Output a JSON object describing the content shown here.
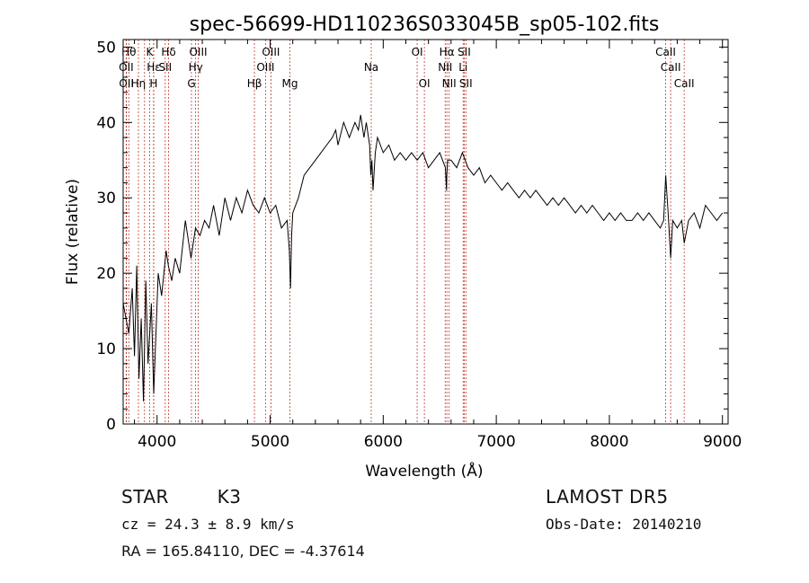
{
  "chart_data": {
    "type": "line",
    "title": "spec-56699-HD110236S033045B_sp05-102.fits",
    "xlabel": "Wavelength (Å)",
    "ylabel": "Flux (relative)",
    "xlim": [
      3700,
      9050
    ],
    "ylim": [
      0,
      51
    ],
    "xticks": [
      4000,
      5000,
      6000,
      7000,
      8000,
      9000
    ],
    "yticks": [
      0,
      10,
      20,
      30,
      40,
      50
    ],
    "grid": false,
    "series": [
      {
        "x": [
          3700,
          3750,
          3780,
          3800,
          3820,
          3840,
          3860,
          3880,
          3900,
          3920,
          3950,
          3970,
          3990,
          4010,
          4040,
          4080,
          4100,
          4130,
          4160,
          4200,
          4250,
          4300,
          4340,
          4380,
          4420,
          4460,
          4500,
          4550,
          4600,
          4650,
          4700,
          4750,
          4800,
          4850,
          4900,
          4950,
          5000,
          5050,
          5100,
          5150,
          5170,
          5180,
          5190,
          5200,
          5250,
          5300,
          5350,
          5400,
          5450,
          5500,
          5550,
          5580,
          5600,
          5650,
          5700,
          5750,
          5780,
          5800,
          5830,
          5850,
          5880,
          5890,
          5900,
          5910,
          5930,
          5950,
          6000,
          6050,
          6100,
          6150,
          6200,
          6250,
          6300,
          6350,
          6400,
          6450,
          6500,
          6550,
          6560,
          6563,
          6570,
          6600,
          6650,
          6700,
          6750,
          6800,
          6850,
          6900,
          6950,
          7000,
          7050,
          7100,
          7150,
          7200,
          7250,
          7300,
          7350,
          7400,
          7450,
          7500,
          7550,
          7600,
          7650,
          7700,
          7750,
          7800,
          7850,
          7900,
          7950,
          8000,
          8050,
          8100,
          8150,
          8200,
          8250,
          8300,
          8350,
          8400,
          8450,
          8480,
          8498,
          8520,
          8542,
          8560,
          8600,
          8640,
          8662,
          8700,
          8750,
          8800,
          8850,
          8900,
          8950,
          9000
        ],
        "y": [
          16,
          12,
          18,
          9,
          21,
          6,
          14,
          3,
          19,
          8,
          16,
          4,
          12,
          20,
          17,
          23,
          21,
          19,
          22,
          20,
          27,
          22,
          26,
          25,
          27,
          26,
          29,
          25,
          30,
          27,
          30,
          28,
          31,
          29,
          28,
          30,
          28,
          29,
          26,
          27,
          23,
          18,
          25,
          28,
          30,
          33,
          34,
          35,
          36,
          37,
          38,
          39,
          37,
          40,
          38,
          40,
          39,
          41,
          38,
          40,
          37,
          33,
          35,
          31,
          36,
          38,
          36,
          37,
          35,
          36,
          35,
          36,
          35,
          36,
          34,
          35,
          36,
          34,
          31,
          33,
          35,
          35,
          34,
          36,
          34,
          33,
          34,
          32,
          33,
          32,
          31,
          32,
          31,
          30,
          31,
          30,
          31,
          30,
          29,
          30,
          29,
          30,
          29,
          28,
          29,
          28,
          29,
          28,
          27,
          28,
          27,
          28,
          27,
          27,
          28,
          27,
          28,
          27,
          26,
          27,
          33,
          28,
          22,
          27,
          26,
          27,
          24,
          27,
          28,
          26,
          29,
          28,
          27,
          28
        ]
      }
    ],
    "lines": [
      {
        "wl": 3750,
        "label": "Hθ",
        "row": 1
      },
      {
        "wl": 3727,
        "label": "OII",
        "row": 2
      },
      {
        "wl": 3729,
        "label": "OII",
        "row": 3
      },
      {
        "wl": 3835,
        "label": "Hη",
        "row": 3
      },
      {
        "wl": 3889,
        "label": "",
        "row": 0
      },
      {
        "wl": 3934,
        "label": "K",
        "row": 1
      },
      {
        "wl": 3969,
        "label": "H",
        "row": 3
      },
      {
        "wl": 3970,
        "label": "Hε",
        "row": 2
      },
      {
        "wl": 4072,
        "label": "SII",
        "row": 2
      },
      {
        "wl": 4102,
        "label": "Hδ",
        "row": 1
      },
      {
        "wl": 4304,
        "label": "G",
        "row": 3
      },
      {
        "wl": 4341,
        "label": "Hγ",
        "row": 2
      },
      {
        "wl": 4364,
        "label": "OIII",
        "row": 1
      },
      {
        "wl": 4861,
        "label": "Hβ",
        "row": 3
      },
      {
        "wl": 4959,
        "label": "OIII",
        "row": 2
      },
      {
        "wl": 5007,
        "label": "OIII",
        "row": 1
      },
      {
        "wl": 5175,
        "label": "Mg",
        "row": 3
      },
      {
        "wl": 5894,
        "label": "Na",
        "row": 2
      },
      {
        "wl": 6300,
        "label": "OI",
        "row": 1
      },
      {
        "wl": 6364,
        "label": "OI",
        "row": 3
      },
      {
        "wl": 6548,
        "label": "NII",
        "row": 2
      },
      {
        "wl": 6563,
        "label": "Hα",
        "row": 1
      },
      {
        "wl": 6583,
        "label": "NII",
        "row": 3
      },
      {
        "wl": 6707,
        "label": "Li",
        "row": 2
      },
      {
        "wl": 6716,
        "label": "SII",
        "row": 1
      },
      {
        "wl": 6731,
        "label": "SII",
        "row": 3
      },
      {
        "wl": 8498,
        "label": "CaII",
        "row": 1
      },
      {
        "wl": 8542,
        "label": "CaII",
        "row": 2
      },
      {
        "wl": 8662,
        "label": "CaII",
        "row": 3
      }
    ]
  },
  "info": {
    "class_label": "STAR",
    "subclass": "K3",
    "survey": "LAMOST DR5",
    "cz": "cz = 24.3 ± 8.9 km/s",
    "obs_date": "Obs-Date: 20140210",
    "coords": "RA = 165.84110, DEC =  -4.37614"
  }
}
